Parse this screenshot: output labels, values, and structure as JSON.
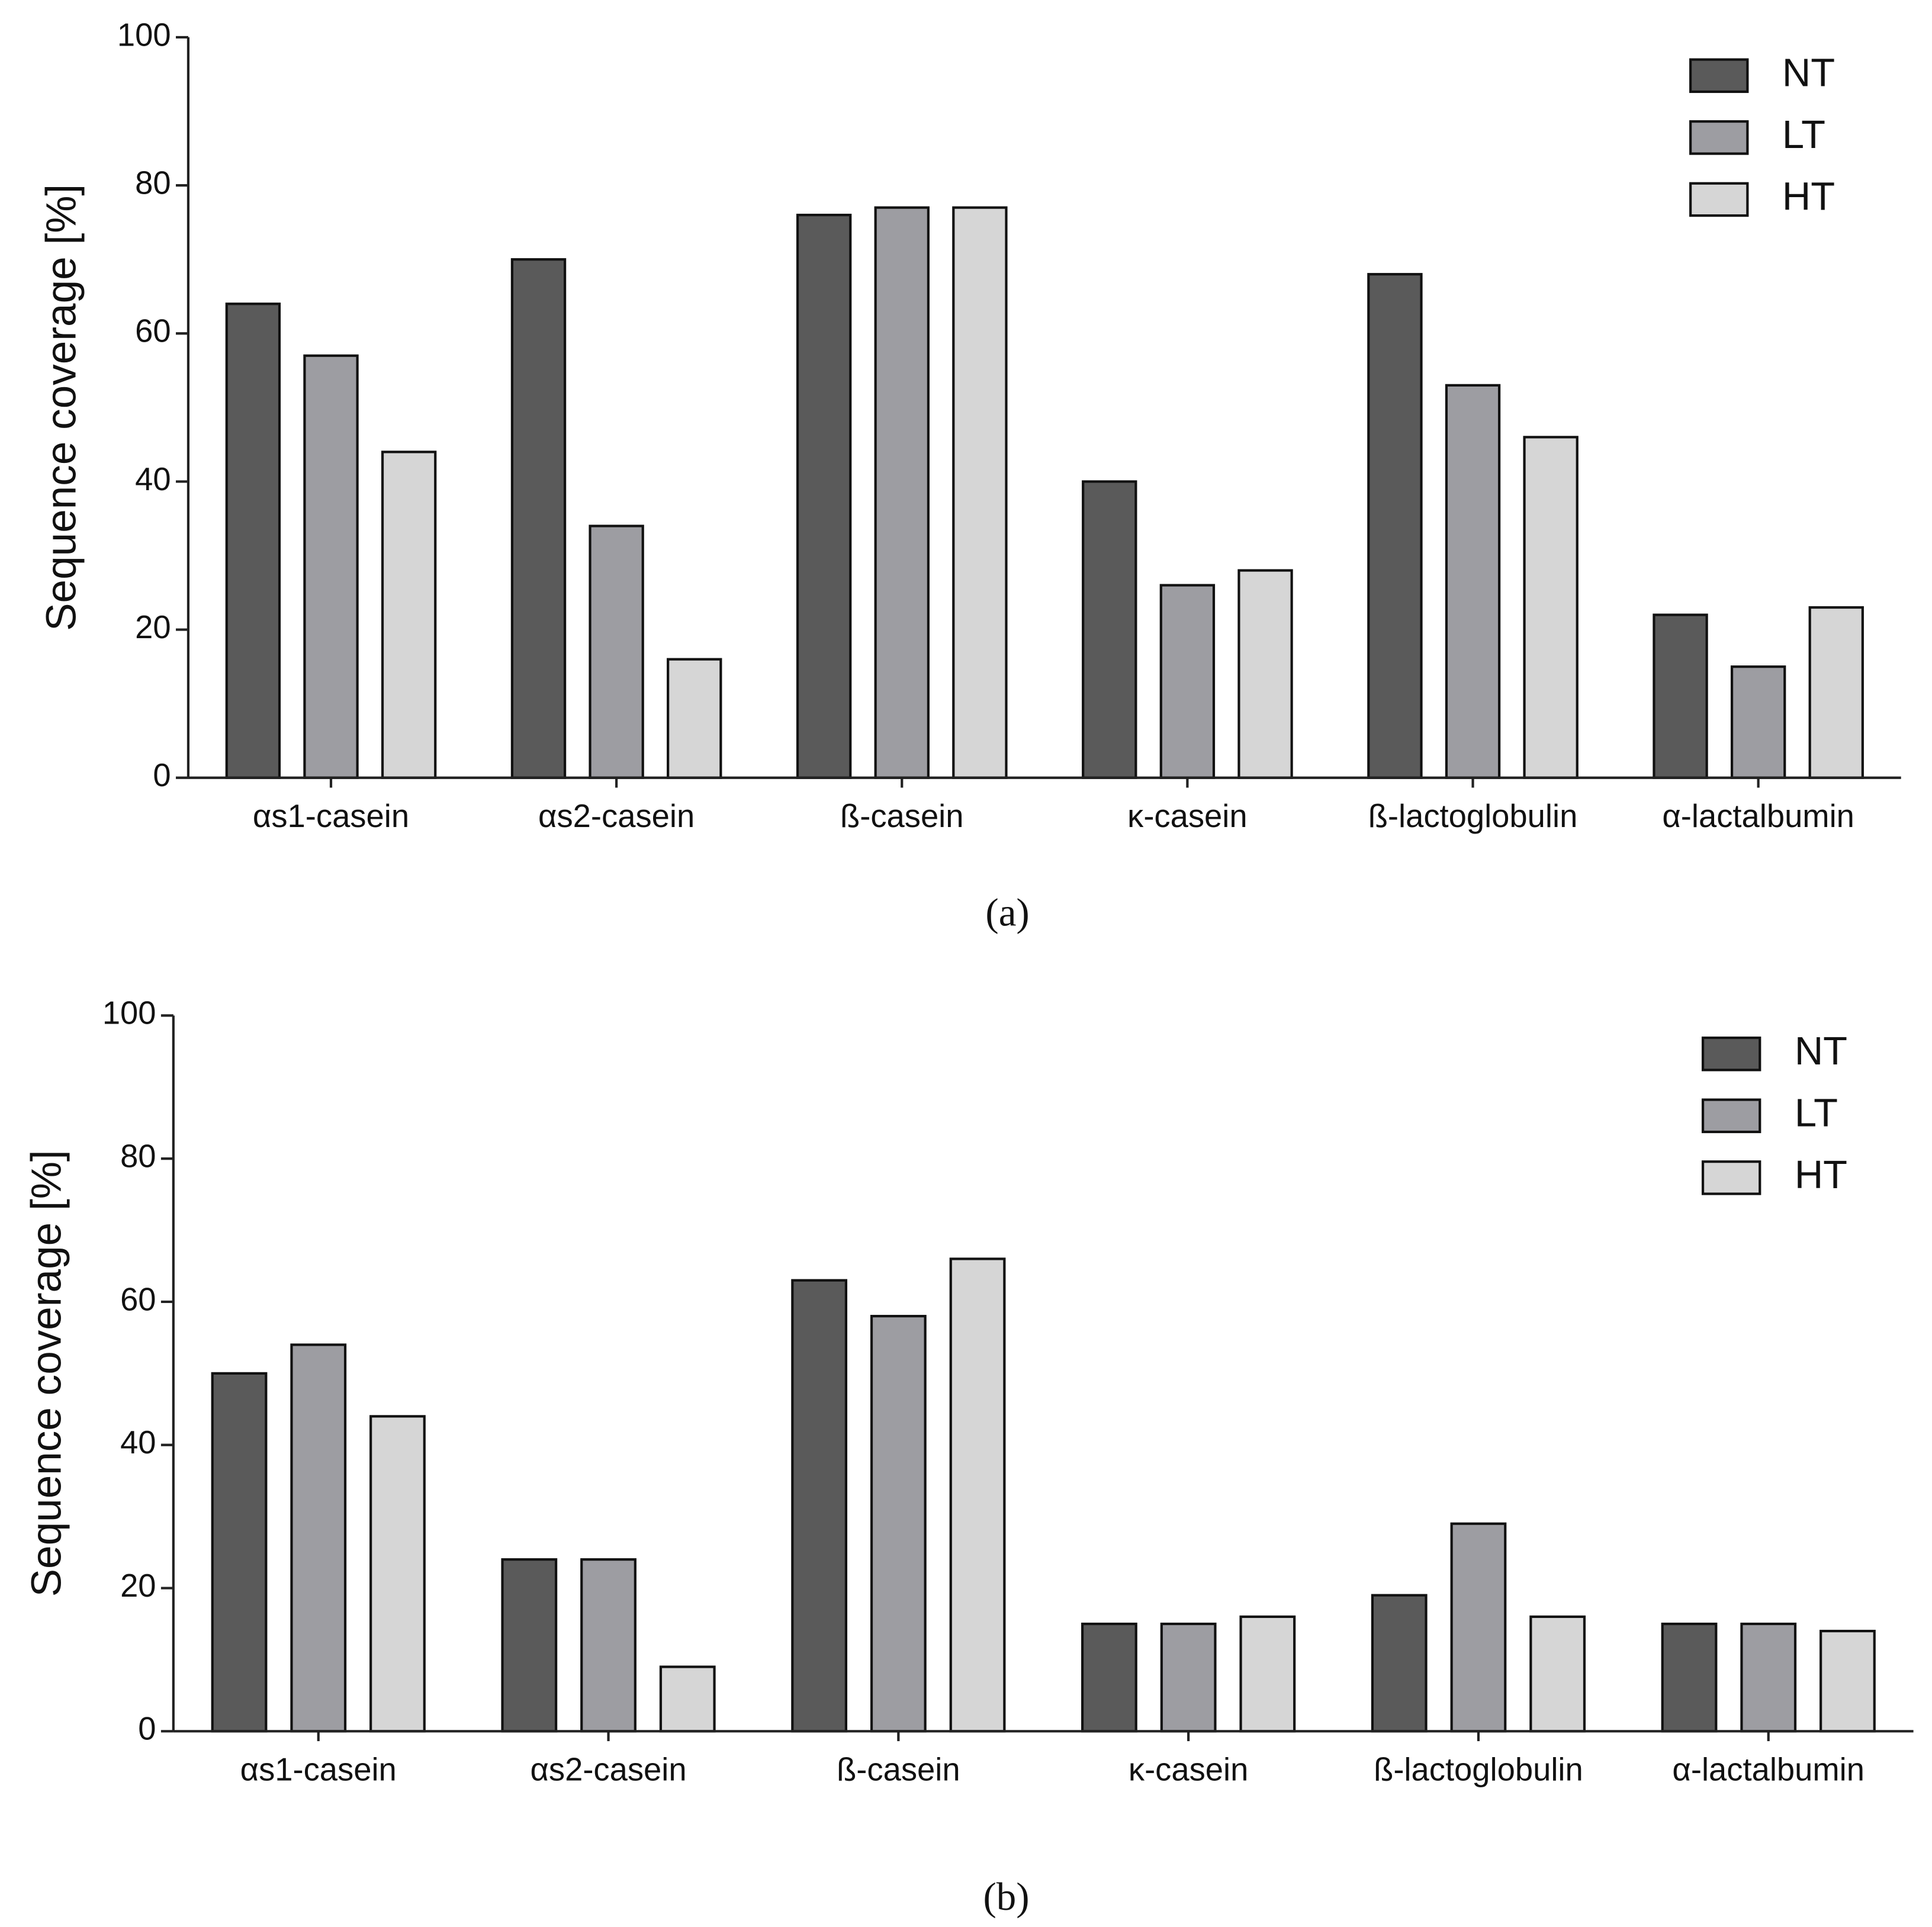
{
  "chart_data": [
    {
      "type": "bar",
      "label": "(a)",
      "y_label": "Sequence coverage [%]",
      "categories": [
        "αs1-casein",
        "αs2-casein",
        "ß-casein",
        "κ-casein",
        "ß-lactoglobulin",
        "α-lactalbumin"
      ],
      "series": [
        {
          "name": "NT",
          "color": "#5a5a5a",
          "values": [
            64,
            70,
            76,
            40,
            68,
            22
          ]
        },
        {
          "name": "LT",
          "color": "#9d9da2",
          "values": [
            57,
            34,
            77,
            26,
            53,
            15
          ]
        },
        {
          "name": "HT",
          "color": "#d6d6d6",
          "values": [
            44,
            16,
            77,
            28,
            46,
            23
          ]
        }
      ],
      "ylim": [
        0,
        100
      ],
      "yticks": [
        0,
        20,
        40,
        60,
        80,
        100
      ],
      "legend": "upper right"
    },
    {
      "type": "bar",
      "label": "(b)",
      "y_label": "Sequence coverage [%]",
      "categories": [
        "αs1-casein",
        "αs2-casein",
        "ß-casein",
        "κ-casein",
        "ß-lactoglobulin",
        "α-lactalbumin"
      ],
      "series": [
        {
          "name": "NT",
          "color": "#5a5a5a",
          "values": [
            50,
            24,
            63,
            15,
            19,
            15
          ]
        },
        {
          "name": "LT",
          "color": "#9d9da2",
          "values": [
            54,
            24,
            58,
            15,
            29,
            15
          ]
        },
        {
          "name": "HT",
          "color": "#d6d6d6",
          "values": [
            44,
            9,
            66,
            16,
            16,
            14
          ]
        }
      ],
      "ylim": [
        0,
        100
      ],
      "yticks": [
        0,
        20,
        40,
        60,
        80,
        100
      ],
      "legend": "upper right"
    }
  ]
}
